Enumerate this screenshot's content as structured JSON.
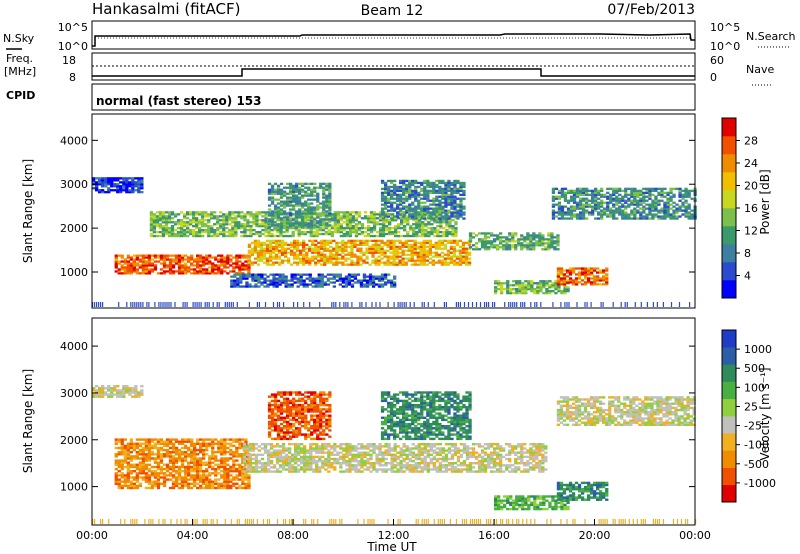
{
  "header": {
    "station": "Hankasalmi (fitACF)",
    "beam": "Beam 12",
    "date": "07/Feb/2013"
  },
  "top_panels": {
    "nsky_label": "N.Sky",
    "nsky_tick_hi": "10^5",
    "nsky_tick_lo": "10^0",
    "nsearch_label": "N.Search",
    "nsearch_tick_hi": "10^5",
    "nsearch_tick_lo": "10^0",
    "freq_label_1": "Freq.",
    "freq_label_2": "[MHz]",
    "freq_tick_hi": "18",
    "freq_tick_lo": "8",
    "nave_label": "Nave",
    "nave_tick_hi": "60",
    "nave_tick_lo": "0",
    "cpid_label": "CPID",
    "cpid_text": "normal (fast stereo) 153"
  },
  "chart_data": [
    {
      "type": "heatmap",
      "name": "Power",
      "ylabel": "Slant Range [km]",
      "ylim": [
        180,
        4600
      ],
      "yticks": [
        1000,
        2000,
        3000,
        4000
      ],
      "xlim": [
        0,
        24
      ],
      "colorbar": {
        "label": "Power [dB]",
        "range": [
          0,
          32
        ],
        "tick_labels": [
          "4",
          "8",
          "12",
          "16",
          "20",
          "24",
          "28"
        ],
        "colors": [
          "#0000ff",
          "#2a4bd0",
          "#3d7fa0",
          "#3a9a6a",
          "#7ac04a",
          "#c8d820",
          "#f0c000",
          "#f08c00",
          "#f05000",
          "#e00000"
        ]
      },
      "echo_bands": [
        {
          "t0": 0.9,
          "t1": 6.2,
          "r0": 950,
          "r1": 1400,
          "level": 27
        },
        {
          "t0": 6.2,
          "t1": 15.0,
          "r0": 1150,
          "r1": 1700,
          "level": 22
        },
        {
          "t0": 15.0,
          "t1": 18.5,
          "r0": 1500,
          "r1": 1900,
          "level": 12
        },
        {
          "t0": 2.3,
          "t1": 14.5,
          "r0": 1800,
          "r1": 2350,
          "level": 14
        },
        {
          "t0": 7.0,
          "t1": 9.5,
          "r0": 2000,
          "r1": 3000,
          "level": 11
        },
        {
          "t0": 11.5,
          "t1": 14.8,
          "r0": 2200,
          "r1": 3100,
          "level": 9
        },
        {
          "t0": 18.3,
          "t1": 24.0,
          "r0": 2200,
          "r1": 2900,
          "level": 10
        },
        {
          "t0": 0.0,
          "t1": 2.0,
          "r0": 2800,
          "r1": 3150,
          "level": 3
        },
        {
          "t0": 16.0,
          "t1": 19.0,
          "r0": 500,
          "r1": 800,
          "level": 14
        },
        {
          "t0": 5.5,
          "t1": 12.0,
          "r0": 650,
          "r1": 950,
          "level": 6
        },
        {
          "t0": 18.5,
          "t1": 20.5,
          "r0": 700,
          "r1": 1100,
          "level": 26
        }
      ]
    },
    {
      "type": "heatmap",
      "name": "Velocity",
      "ylabel": "Slant Range [km]",
      "ylim": [
        180,
        4600
      ],
      "yticks": [
        1000,
        2000,
        3000,
        4000
      ],
      "xlabel": "Time UT",
      "xlim": [
        0,
        24
      ],
      "xtick_labels": [
        "00:00",
        "04:00",
        "08:00",
        "12:00",
        "16:00",
        "20:00",
        "00:00"
      ],
      "colorbar": {
        "label": "Velocity [m s⁻¹]",
        "tick_labels": [
          "1000",
          "500",
          "100",
          "25",
          "-25",
          "-100",
          "-500",
          "-1000"
        ],
        "colors": [
          "#1f3cc8",
          "#2a5fa8",
          "#2f8c5a",
          "#48b040",
          "#90d040",
          "#c0c0bc",
          "#f0b020",
          "#f08c00",
          "#f05000",
          "#e00000"
        ]
      },
      "echo_bands": [
        {
          "t0": 0.9,
          "t1": 6.2,
          "r0": 950,
          "r1": 2000,
          "level": 7
        },
        {
          "t0": 6.0,
          "t1": 18.0,
          "r0": 1300,
          "r1": 1900,
          "level": 5
        },
        {
          "t0": 7.0,
          "t1": 9.5,
          "r0": 2000,
          "r1": 3000,
          "level": 8
        },
        {
          "t0": 18.5,
          "t1": 24.0,
          "r0": 2300,
          "r1": 2900,
          "level": 5
        },
        {
          "t0": 0.0,
          "t1": 2.0,
          "r0": 2900,
          "r1": 3150,
          "level": 5
        },
        {
          "t0": 11.5,
          "t1": 15.0,
          "r0": 2000,
          "r1": 3000,
          "level": 2
        },
        {
          "t0": 16.0,
          "t1": 19.0,
          "r0": 500,
          "r1": 800,
          "level": 3
        },
        {
          "t0": 18.5,
          "t1": 20.5,
          "r0": 700,
          "r1": 1100,
          "level": 2
        }
      ]
    }
  ]
}
